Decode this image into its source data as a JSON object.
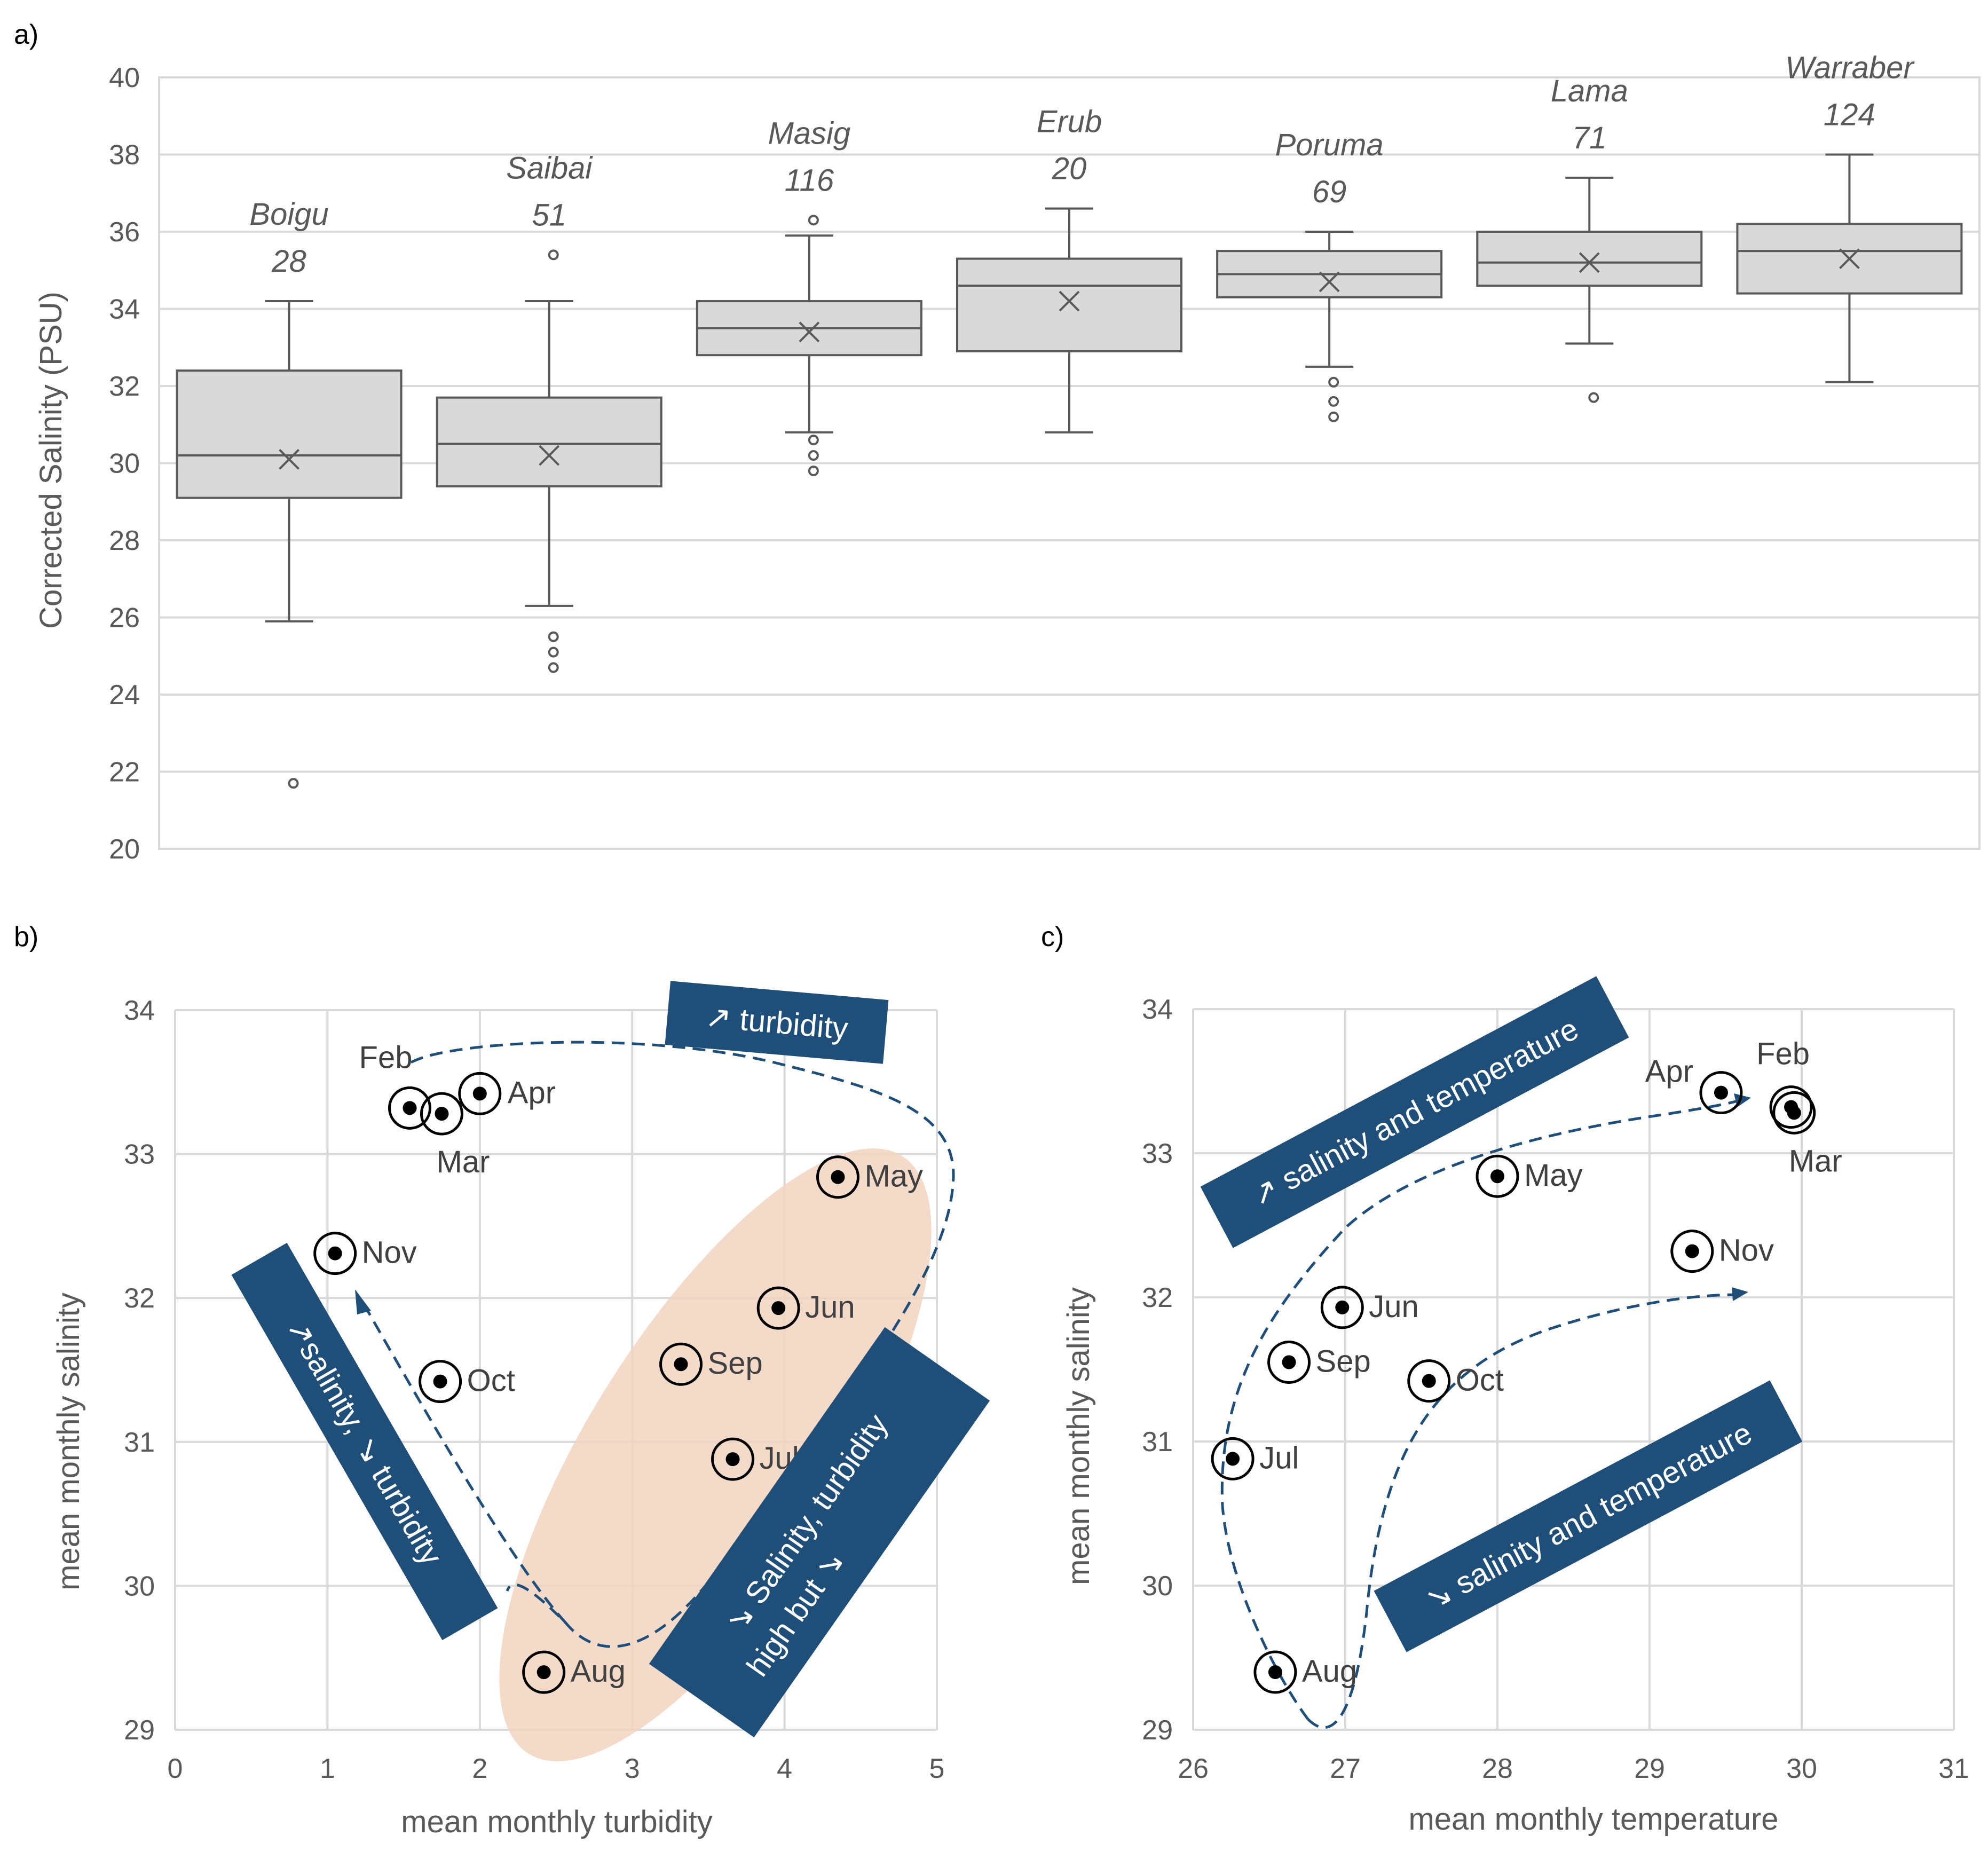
{
  "chart_data": [
    {
      "panel": "a)",
      "type": "box",
      "ylabel": "Corrected Salinity  (PSU)",
      "ylim": [
        20,
        40
      ],
      "yticks": [
        20,
        22,
        24,
        26,
        28,
        30,
        32,
        34,
        36,
        38,
        40
      ],
      "grid": true,
      "box_color": "#d9d9d9",
      "categories": [
        {
          "name": "Boigu",
          "n": "28",
          "whisker_low": 25.9,
          "q1": 29.1,
          "median": 30.2,
          "q3": 32.4,
          "whisker_high": 34.2,
          "mean": 30.1,
          "outliers": [
            21.7
          ]
        },
        {
          "name": "Saibai",
          "n": "51",
          "whisker_low": 26.3,
          "q1": 29.4,
          "median": 30.5,
          "q3": 31.7,
          "whisker_high": 34.2,
          "mean": 30.2,
          "outliers": [
            24.7,
            25.1,
            25.5,
            35.4
          ]
        },
        {
          "name": "Masig",
          "n": "116",
          "whisker_low": 30.8,
          "q1": 32.8,
          "median": 33.5,
          "q3": 34.2,
          "whisker_high": 35.9,
          "mean": 33.4,
          "outliers": [
            29.8,
            30.2,
            30.6,
            36.3
          ]
        },
        {
          "name": "Erub",
          "n": "20",
          "whisker_low": 30.8,
          "q1": 32.9,
          "median": 34.6,
          "q3": 35.3,
          "whisker_high": 36.6,
          "mean": 34.2,
          "outliers": []
        },
        {
          "name": "Poruma",
          "n": "69",
          "whisker_low": 32.5,
          "q1": 34.3,
          "median": 34.9,
          "q3": 35.5,
          "whisker_high": 36.0,
          "mean": 34.7,
          "outliers": [
            31.2,
            31.6,
            32.1
          ]
        },
        {
          "name": "Lama",
          "n": "71",
          "whisker_low": 33.1,
          "q1": 34.6,
          "median": 35.2,
          "q3": 36.0,
          "whisker_high": 37.4,
          "mean": 35.2,
          "outliers": [
            31.7
          ]
        },
        {
          "name": "Warraber",
          "n": "124",
          "whisker_low": 32.1,
          "q1": 34.4,
          "median": 35.5,
          "q3": 36.2,
          "whisker_high": 38.0,
          "mean": 35.3,
          "outliers": []
        }
      ]
    },
    {
      "panel": "b)",
      "type": "scatter",
      "xlabel": "mean monthly turbidity",
      "ylabel": "mean monthly salinity",
      "xlim": [
        0,
        5
      ],
      "ylim": [
        29,
        34
      ],
      "xticks": [
        0,
        1,
        2,
        3,
        4,
        5
      ],
      "yticks": [
        29,
        30,
        31,
        32,
        33,
        34
      ],
      "grid": true,
      "highlight_color": "#f2d3c0",
      "points": [
        {
          "label": "Feb",
          "x": 1.54,
          "y": 33.32
        },
        {
          "label": "Mar",
          "x": 1.75,
          "y": 33.28
        },
        {
          "label": "Apr",
          "x": 2.0,
          "y": 33.42
        },
        {
          "label": "May",
          "x": 4.35,
          "y": 32.84
        },
        {
          "label": "Jun",
          "x": 3.96,
          "y": 31.93
        },
        {
          "label": "Jul",
          "x": 3.66,
          "y": 30.88
        },
        {
          "label": "Aug",
          "x": 2.42,
          "y": 29.4
        },
        {
          "label": "Sep",
          "x": 3.32,
          "y": 31.54
        },
        {
          "label": "Oct",
          "x": 1.74,
          "y": 31.42
        },
        {
          "label": "Nov",
          "x": 1.05,
          "y": 32.31
        }
      ],
      "annotations": [
        "↗ turbidity",
        "↗salinity, ↘ turbidity",
        "↘ Salinity,  turbidity",
        "high but ↘"
      ],
      "annotation_color": "#1f4e79"
    },
    {
      "panel": "c)",
      "type": "scatter",
      "xlabel": "mean monthly temperature",
      "ylabel": "mean monthly salinity",
      "xlim": [
        26,
        31
      ],
      "ylim": [
        29,
        34
      ],
      "xticks": [
        26,
        27,
        28,
        29,
        30,
        31
      ],
      "yticks": [
        29,
        30,
        31,
        32,
        33,
        34
      ],
      "grid": true,
      "points": [
        {
          "label": "Feb",
          "x": 29.93,
          "y": 33.32
        },
        {
          "label": "Mar",
          "x": 29.95,
          "y": 33.28
        },
        {
          "label": "Apr",
          "x": 29.47,
          "y": 33.42
        },
        {
          "label": "May",
          "x": 28.0,
          "y": 32.84
        },
        {
          "label": "Jun",
          "x": 26.98,
          "y": 31.93
        },
        {
          "label": "Jul",
          "x": 26.26,
          "y": 30.88
        },
        {
          "label": "Aug",
          "x": 26.54,
          "y": 29.4
        },
        {
          "label": "Sep",
          "x": 26.63,
          "y": 31.55
        },
        {
          "label": "Oct",
          "x": 27.55,
          "y": 31.42
        },
        {
          "label": "Nov",
          "x": 29.28,
          "y": 32.32
        }
      ],
      "annotations": [
        "↗ salinity and temperature",
        "↘ salinity and temperature"
      ],
      "annotation_color": "#1f4e79"
    }
  ]
}
